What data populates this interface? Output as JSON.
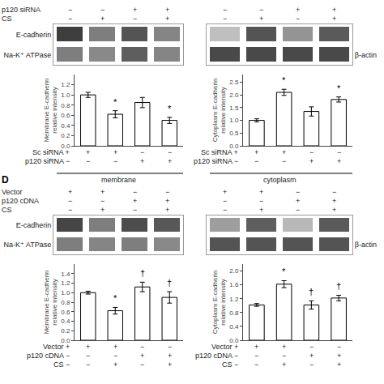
{
  "chart_data": [
    {
      "type": "heatmap",
      "categories": [
        null,
        null,
        null,
        null
      ],
      "rows": [
        "E-cadherin",
        "Na-K⁺ ATPase"
      ],
      "values": [
        [
          0.85,
          0.55,
          0.75,
          0.52
        ],
        [
          0.55,
          0.5,
          0.7,
          0.52
        ]
      ],
      "zlim": [
        0,
        1
      ],
      "conditions": [
        {
          "name": "p120 siRNA",
          "signs": [
            "−",
            "−",
            "+",
            "+"
          ]
        },
        {
          "name": "CS",
          "signs": [
            "−",
            "+",
            "−",
            "+"
          ]
        }
      ]
    },
    {
      "type": "heatmap",
      "categories": [
        null,
        null,
        null,
        null
      ],
      "rows": [
        null,
        "β-actin"
      ],
      "values": [
        [
          0.25,
          0.75,
          0.45,
          0.72
        ],
        [
          0.8,
          0.8,
          0.8,
          0.8
        ]
      ],
      "zlim": [
        0,
        1
      ],
      "conditions": [
        {
          "name": null,
          "signs": [
            "−",
            "−",
            "+",
            "+"
          ]
        },
        {
          "name": null,
          "signs": [
            "−",
            "+",
            "−",
            "+"
          ]
        }
      ]
    },
    {
      "type": "bar",
      "categories": [
        null,
        null,
        null,
        null
      ],
      "values": [
        1.0,
        0.62,
        0.85,
        0.5
      ],
      "errors": [
        0.05,
        0.07,
        0.1,
        0.06
      ],
      "color": "#ffffff",
      "ylim": [
        0.0,
        1.4
      ],
      "yticks": [
        {
          "value": 0.0,
          "label": "0.0"
        },
        0.2,
        0.4,
        0.6,
        0.8,
        {
          "value": 1.0,
          "label": "1.0"
        },
        1.2
      ],
      "ylabel": "Membrane E-cadherin\nrelative intensity",
      "annotations": [
        null,
        "*",
        null,
        "*"
      ],
      "grid": false,
      "conditions": [
        {
          "name": "Sc siRNA +",
          "signs": [
            "+",
            "+",
            "−",
            "−"
          ]
        },
        {
          "name": "p120 siRNA −",
          "signs": [
            "−",
            "−",
            "+",
            "+"
          ]
        }
      ]
    },
    {
      "type": "bar",
      "categories": [
        null,
        null,
        null,
        null
      ],
      "values": [
        1.0,
        2.1,
        1.35,
        1.82
      ],
      "errors": [
        0.06,
        0.12,
        0.18,
        0.1
      ],
      "color": "#ffffff",
      "ylim": [
        0.0,
        2.8
      ],
      "yticks": [
        {
          "value": 0.0,
          "label": "0.0"
        },
        0.5,
        {
          "value": 1.0,
          "label": "1.0"
        },
        1.5,
        {
          "value": 2.0,
          "label": "2.0"
        },
        2.5
      ],
      "ylabel": "Cytoplasm E-cadherin\nrelative intensity",
      "annotations": [
        null,
        "*",
        null,
        "*"
      ],
      "grid": false,
      "conditions": [
        {
          "name": "Sc siRNA +",
          "signs": [
            "+",
            "+",
            "−",
            "−"
          ]
        },
        {
          "name": "p120 siRNA −",
          "signs": [
            "−",
            "−",
            "+",
            "+"
          ]
        }
      ]
    },
    {
      "type": "heatmap",
      "categories": [
        null,
        null,
        null,
        null
      ],
      "title": "membrane",
      "label": "D",
      "rows": [
        "E-cadherin",
        "Na-K⁺ ATPase"
      ],
      "values": [
        [
          0.82,
          0.55,
          0.78,
          0.73
        ],
        [
          0.55,
          0.52,
          0.55,
          0.5
        ]
      ],
      "zlim": [
        0,
        1
      ],
      "conditions": [
        {
          "name": "Vector",
          "signs": [
            "+",
            "+",
            "−",
            "−"
          ]
        },
        {
          "name": "p120 cDNA",
          "signs": [
            "−",
            "−",
            "+",
            "+"
          ]
        },
        {
          "name": "CS",
          "signs": [
            "−",
            "+",
            "−",
            "+"
          ]
        }
      ]
    },
    {
      "type": "heatmap",
      "categories": [
        null,
        null,
        null,
        null
      ],
      "title": "cytoplasm",
      "rows": [
        null,
        "β-actin"
      ],
      "values": [
        [
          0.4,
          0.7,
          0.28,
          0.72
        ],
        [
          0.75,
          0.75,
          0.75,
          0.75
        ]
      ],
      "zlim": [
        0,
        1
      ],
      "conditions": [
        {
          "name": null,
          "signs": [
            "+",
            "+",
            "−",
            "−"
          ]
        },
        {
          "name": null,
          "signs": [
            "−",
            "−",
            "+",
            "+"
          ]
        },
        {
          "name": null,
          "signs": [
            "−",
            "+",
            "−",
            "+"
          ]
        }
      ]
    },
    {
      "type": "bar",
      "categories": [
        null,
        null,
        null,
        null
      ],
      "values": [
        1.0,
        0.62,
        1.12,
        0.9
      ],
      "errors": [
        0.03,
        0.07,
        0.1,
        0.12
      ],
      "color": "#ffffff",
      "ylim": [
        0.0,
        1.6
      ],
      "yticks": [
        {
          "value": 0.0,
          "label": "0.0"
        },
        0.2,
        0.4,
        0.6,
        0.8,
        {
          "value": 1.0,
          "label": "1.0"
        },
        1.2,
        1.4
      ],
      "ylabel": "Membrane E-cadherin\nrelative intensity",
      "annotations": [
        null,
        "*",
        "†",
        "†"
      ],
      "grid": false,
      "conditions": [
        {
          "name": "Vector +",
          "signs": [
            "+",
            "+",
            "−",
            "−"
          ]
        },
        {
          "name": "p120 cDNA −",
          "signs": [
            "−",
            "−",
            "+",
            "+"
          ]
        },
        {
          "name": "CS −",
          "signs": [
            "−",
            "+",
            "−",
            "+"
          ]
        }
      ]
    },
    {
      "type": "bar",
      "categories": [
        null,
        null,
        null,
        null
      ],
      "values": [
        1.02,
        1.62,
        1.02,
        1.22
      ],
      "errors": [
        0.04,
        0.1,
        0.12,
        0.08
      ],
      "color": "#ffffff",
      "ylim": [
        0.0,
        2.2
      ],
      "yticks": [
        {
          "value": 0.0,
          "label": "0.0"
        },
        0.4,
        0.8,
        1.2,
        1.6,
        {
          "value": 2.0,
          "label": "2.0"
        }
      ],
      "ylabel": "Cytoplasm E-cadherin\nrelative intensity",
      "annotations": [
        null,
        "*",
        "†",
        "†"
      ],
      "grid": false,
      "conditions": [
        {
          "name": "Vector +",
          "signs": [
            "+",
            "+",
            "−",
            "−"
          ]
        },
        {
          "name": "p120 cDNA −",
          "signs": [
            "−",
            "−",
            "+",
            "+"
          ]
        },
        {
          "name": "CS −",
          "signs": [
            "−",
            "+",
            "−",
            "+"
          ]
        }
      ]
    }
  ]
}
